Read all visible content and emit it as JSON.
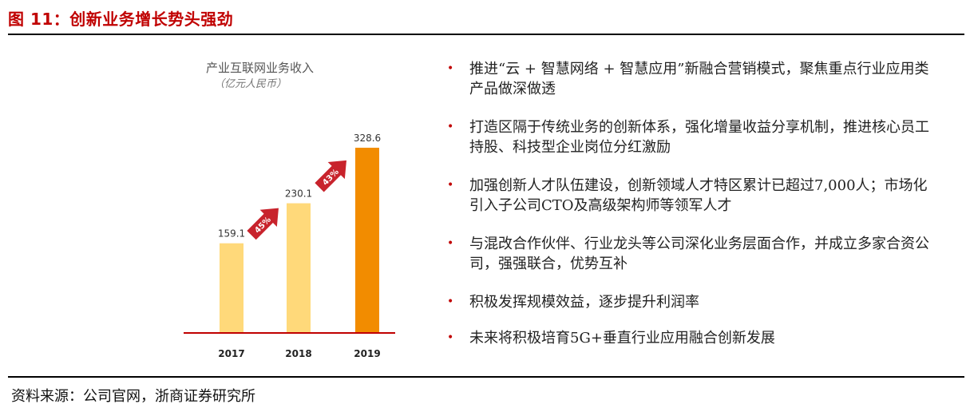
{
  "figure": {
    "title": "图 11：创新业务增长势头强劲",
    "source": "资料来源：公司官网，浙商证券研究所"
  },
  "colors": {
    "accent": "#c00000",
    "bar_light": "#ffd97a",
    "bar_highlight": "#f28c00",
    "baseline": "#c00000",
    "arrow": "#c8232c"
  },
  "chart_data": {
    "type": "bar",
    "title": "产业互联网业务收入",
    "subtitle": "（亿元人民币）",
    "categories": [
      "2017",
      "2018",
      "2019"
    ],
    "values": [
      159.1,
      230.1,
      328.6
    ],
    "value_labels": [
      "159.1",
      "230.1",
      "328.6"
    ],
    "growth_labels": [
      "45%",
      "43%"
    ],
    "ylim": [
      0,
      340
    ],
    "grid": false,
    "legend": "none"
  },
  "bullets": [
    "推进“云 + 智慧网络 + 智慧应用”新融合营销模式，聚焦重点行业应用类产品做深做透",
    "打造区隔于传统业务的创新体系，强化增量收益分享机制，推进核心员工持股、科技型企业岗位分红激励",
    "加强创新人才队伍建设，创新领域人才特区累计已超过7,000人；市场化引入子公司CTO及高级架构师等领军人才",
    "与混改合作伙伴、行业龙头等公司深化业务层面合作，并成立多家合资公司，强强联合，优势互补",
    "积极发挥规模效益，逐步提升利润率",
    "未来将积极培育5G+垂直行业应用融合创新发展"
  ],
  "bullet_symbol": "•"
}
